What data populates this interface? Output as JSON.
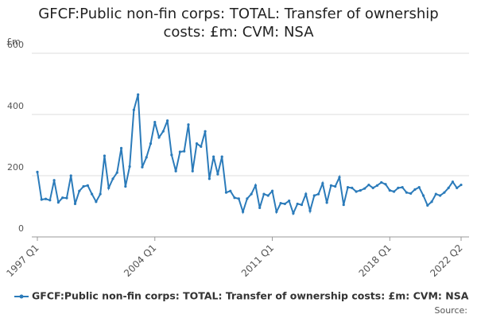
{
  "chart_data": {
    "type": "line",
    "title": "GFCF:Public non-fin corps: TOTAL: Transfer of ownership costs: £m: CVM: NSA",
    "y_unit": "£m",
    "source": "Source:",
    "categories": [
      "1997 Q1",
      null,
      null,
      null,
      null,
      null,
      null,
      null,
      null,
      null,
      null,
      null,
      null,
      null,
      null,
      null,
      null,
      null,
      null,
      null,
      null,
      null,
      null,
      null,
      null,
      null,
      null,
      null,
      "2004 Q1",
      null,
      null,
      null,
      null,
      null,
      null,
      null,
      null,
      null,
      null,
      null,
      null,
      null,
      null,
      null,
      null,
      null,
      null,
      null,
      null,
      null,
      null,
      null,
      null,
      null,
      null,
      null,
      "2011 Q1",
      null,
      null,
      null,
      null,
      null,
      null,
      null,
      null,
      null,
      null,
      null,
      null,
      null,
      null,
      null,
      null,
      null,
      null,
      null,
      null,
      null,
      null,
      null,
      null,
      null,
      null,
      null,
      "2018 Q1",
      null,
      null,
      null,
      null,
      null,
      null,
      null,
      null,
      null,
      null,
      null,
      null,
      null,
      null,
      null,
      null,
      "2022 Q2"
    ],
    "series": [
      {
        "name": "GFCF:Public non-fin corps: TOTAL: Transfer of ownership costs: £m: CVM: NSA",
        "color": "#2b7bba",
        "values": [
          212,
          122,
          124,
          120,
          185,
          113,
          128,
          127,
          200,
          108,
          150,
          165,
          168,
          140,
          115,
          140,
          265,
          160,
          190,
          210,
          290,
          165,
          230,
          415,
          465,
          228,
          260,
          305,
          375,
          325,
          345,
          380,
          268,
          215,
          278,
          280,
          367,
          215,
          305,
          295,
          345,
          190,
          262,
          205,
          262,
          145,
          150,
          128,
          125,
          82,
          125,
          140,
          168,
          95,
          140,
          135,
          150,
          82,
          110,
          108,
          118,
          77,
          108,
          105,
          140,
          85,
          135,
          140,
          175,
          112,
          168,
          165,
          195,
          105,
          162,
          160,
          148,
          152,
          158,
          170,
          160,
          168,
          178,
          172,
          152,
          148,
          160,
          162,
          145,
          142,
          155,
          162,
          135,
          103,
          115,
          140,
          135,
          145,
          160,
          180,
          160,
          170
        ]
      }
    ],
    "ylim": [
      0,
      600
    ],
    "yticks": [
      0,
      200,
      400,
      600
    ],
    "grid": true
  }
}
